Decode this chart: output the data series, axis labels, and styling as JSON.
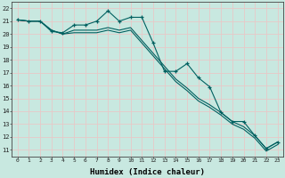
{
  "xlabel": "Humidex (Indice chaleur)",
  "bg_color": "#c8e8e0",
  "grid_color": "#e8c8c8",
  "line_color": "#006060",
  "xlim": [
    -0.5,
    23.5
  ],
  "ylim": [
    10.5,
    22.5
  ],
  "xticks": [
    0,
    1,
    2,
    3,
    4,
    5,
    6,
    7,
    8,
    9,
    10,
    11,
    12,
    13,
    14,
    15,
    16,
    17,
    18,
    19,
    20,
    21,
    22,
    23
  ],
  "yticks": [
    11,
    12,
    13,
    14,
    15,
    16,
    17,
    18,
    19,
    20,
    21,
    22
  ],
  "line1_x": [
    0,
    1,
    2,
    3,
    4,
    5,
    6,
    7,
    8,
    9,
    10,
    11,
    12,
    13,
    14,
    15,
    16,
    17,
    18,
    19,
    20,
    21,
    22,
    23
  ],
  "line1_y": [
    21.1,
    21.0,
    21.0,
    20.2,
    20.1,
    20.7,
    20.7,
    21.0,
    21.8,
    21.0,
    21.3,
    21.3,
    19.3,
    17.1,
    17.1,
    17.7,
    16.6,
    15.9,
    13.9,
    13.2,
    13.2,
    12.1,
    11.1,
    11.6
  ],
  "line2_x": [
    0,
    1,
    2,
    3,
    4,
    5,
    6,
    7,
    8,
    9,
    10,
    11,
    12,
    13,
    14,
    15,
    16,
    17,
    18,
    19,
    20,
    21,
    22,
    23
  ],
  "line2_y": [
    21.1,
    21.0,
    21.0,
    20.3,
    20.0,
    20.3,
    20.3,
    20.3,
    20.5,
    20.3,
    20.5,
    19.5,
    18.5,
    17.5,
    16.5,
    15.8,
    15.0,
    14.5,
    13.9,
    13.2,
    12.8,
    12.1,
    11.1,
    11.6
  ],
  "line3_x": [
    0,
    1,
    2,
    3,
    4,
    5,
    6,
    7,
    8,
    9,
    10,
    11,
    12,
    13,
    14,
    15,
    16,
    17,
    18,
    19,
    20,
    21,
    22,
    23
  ],
  "line3_y": [
    21.1,
    21.0,
    21.0,
    20.3,
    20.0,
    20.1,
    20.1,
    20.1,
    20.3,
    20.1,
    20.3,
    19.3,
    18.3,
    17.3,
    16.3,
    15.6,
    14.8,
    14.3,
    13.7,
    13.0,
    12.6,
    11.9,
    10.9,
    11.4
  ]
}
